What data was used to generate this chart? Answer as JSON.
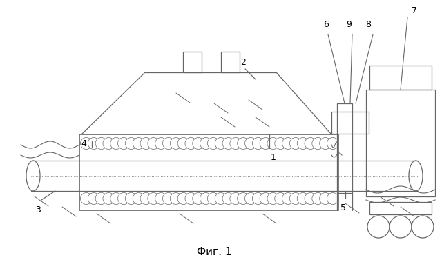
{
  "title": "Фиг. 1",
  "bg_color": "#ffffff",
  "line_color": "#666666",
  "label_color": "#000000",
  "fig_width": 6.4,
  "fig_height": 3.8
}
